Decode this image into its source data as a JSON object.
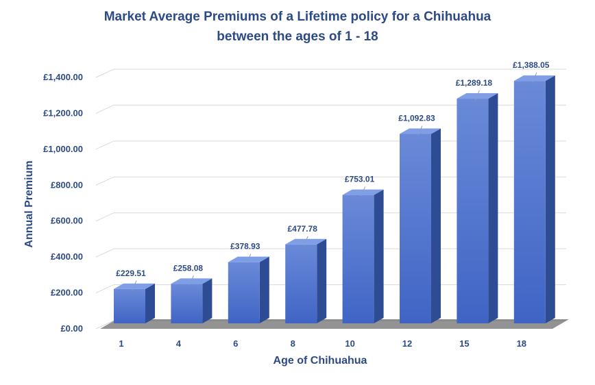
{
  "chart_data": {
    "type": "bar",
    "title": "Market  Average Premiums  of a Lifetime policy for a Chihuahua",
    "subtitle": "between the ages of 1 - 18",
    "xlabel": "Age of Chihuahua",
    "ylabel": "Annual Premium",
    "categories": [
      "1",
      "4",
      "6",
      "8",
      "10",
      "12",
      "15",
      "18"
    ],
    "values": [
      229.51,
      258.08,
      378.93,
      477.78,
      753.01,
      1092.83,
      1289.18,
      1388.05
    ],
    "data_labels": [
      "£229.51",
      "£258.08",
      "£378.93",
      "£477.78",
      "£753.01",
      "£1,092.83",
      "£1,289.18",
      "£1,388.05"
    ],
    "ylim": [
      0,
      1400
    ],
    "yticks": [
      "£0.00",
      "£200.00",
      "£400.00",
      "£600.00",
      "£800.00",
      "£1,000.00",
      "£1,200.00",
      "£1,400.00"
    ],
    "grid": true,
    "legend": "none",
    "bar_style": "3d-column",
    "colors": {
      "bar_front_top": "#6a8ad8",
      "bar_front_bottom": "#3f64c4",
      "bar_side": "#2e4c94",
      "bar_top": "#7f9ee6",
      "text": "#2c4a86",
      "grid": "#d9d9d9"
    }
  }
}
